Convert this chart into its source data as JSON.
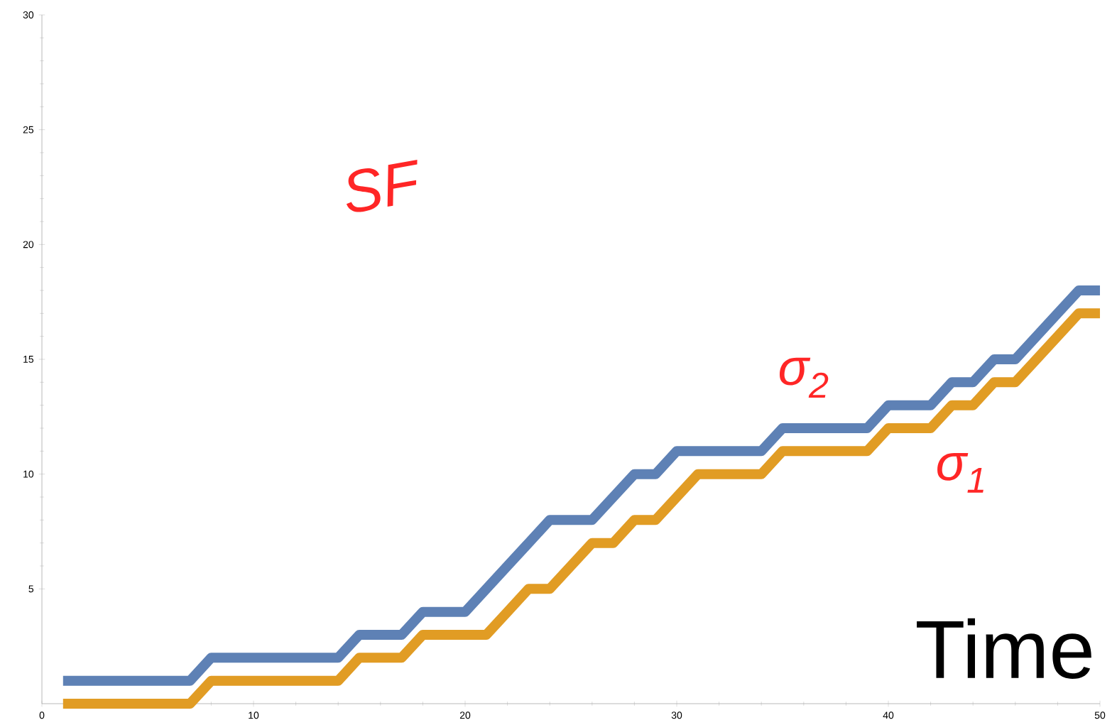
{
  "chart_data": {
    "type": "line",
    "xlabel": "Time",
    "x": [
      1,
      2,
      3,
      4,
      5,
      6,
      7,
      8,
      9,
      10,
      11,
      12,
      13,
      14,
      15,
      16,
      17,
      18,
      19,
      20,
      21,
      22,
      23,
      24,
      25,
      26,
      27,
      28,
      29,
      30,
      31,
      32,
      33,
      34,
      35,
      36,
      37,
      38,
      39,
      40,
      41,
      42,
      43,
      44,
      45,
      46,
      47,
      48,
      49,
      50
    ],
    "series": [
      {
        "name": "σ$_{1}$",
        "color": "#e19c24",
        "values": [
          0,
          0,
          0,
          0,
          0,
          0,
          0,
          1,
          1,
          1,
          1,
          1,
          1,
          1,
          2,
          2,
          2,
          3,
          3,
          3,
          3,
          4,
          5,
          5,
          6,
          7,
          7,
          8,
          8,
          9,
          10,
          10,
          10,
          10,
          11,
          11,
          11,
          11,
          11,
          12,
          12,
          12,
          13,
          13,
          14,
          14,
          15,
          16,
          17,
          17
        ]
      },
      {
        "name": "σ$_{2}$",
        "color": "#5e81b5",
        "values": [
          1,
          1,
          1,
          1,
          1,
          1,
          1,
          2,
          2,
          2,
          2,
          2,
          2,
          2,
          3,
          3,
          3,
          4,
          4,
          4,
          5,
          6,
          7,
          8,
          8,
          8,
          9,
          10,
          10,
          11,
          11,
          11,
          11,
          11,
          12,
          12,
          12,
          12,
          12,
          13,
          13,
          13,
          14,
          14,
          15,
          15,
          16,
          17,
          18,
          18
        ]
      }
    ],
    "annotations": [
      "SF"
    ],
    "xlim": [
      0,
      50
    ],
    "ylim": [
      0,
      30
    ],
    "xticks": [
      0,
      10,
      20,
      30,
      40,
      50
    ],
    "yticks": [
      5,
      10,
      15,
      20,
      25,
      30
    ],
    "line_style": "solid"
  }
}
